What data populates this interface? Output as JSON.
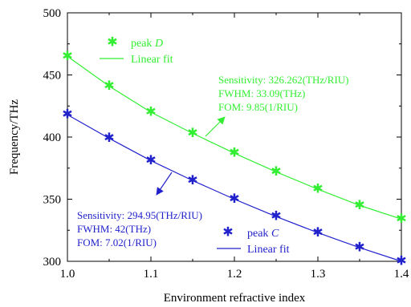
{
  "chart_data": {
    "type": "line",
    "xlabel": "Environment refractive index",
    "ylabel": "Frequency/THz",
    "xlim": [
      1.0,
      1.4
    ],
    "ylim": [
      300,
      500
    ],
    "xticks": [
      1.0,
      1.1,
      1.2,
      1.3,
      1.4
    ],
    "xtick_labels": [
      "1.0",
      "1.1",
      "1.2",
      "1.3",
      "1.4"
    ],
    "yticks": [
      300,
      350,
      400,
      450,
      500
    ],
    "ytick_labels": [
      "300",
      "350",
      "400",
      "450",
      "500"
    ],
    "grid": false,
    "series": [
      {
        "key": "D",
        "marker_label": "peak ",
        "marker_letter": "D",
        "fit_label": "Linear fit",
        "color": "#33ee33",
        "x": [
          1.0,
          1.05,
          1.1,
          1.15,
          1.2,
          1.25,
          1.3,
          1.35,
          1.4
        ],
        "y": [
          465,
          441,
          420,
          403,
          387,
          372,
          358,
          345,
          334
        ]
      },
      {
        "key": "C",
        "marker_label": "peak ",
        "marker_letter": "C",
        "fit_label": "Linear fit",
        "color": "#2222cc",
        "x": [
          1.0,
          1.05,
          1.1,
          1.15,
          1.2,
          1.25,
          1.3,
          1.35,
          1.4
        ],
        "y": [
          418,
          399,
          381,
          365,
          350,
          336,
          323,
          311,
          300
        ]
      }
    ],
    "legend_placement": [
      "top-left",
      "bottom-right"
    ],
    "annotations": [
      {
        "series": "D",
        "lines": [
          "Sensitivity: 326.262(THz/RIU)",
          "FWHM: 33.09(THz)",
          "FOM: 9.85(1/RIU)"
        ]
      },
      {
        "series": "C",
        "lines": [
          "Sensitivity: 294.95(THz/RIU)",
          "FWHM: 42(THz)",
          "FOM: 7.02(1/RIU)"
        ]
      }
    ]
  }
}
